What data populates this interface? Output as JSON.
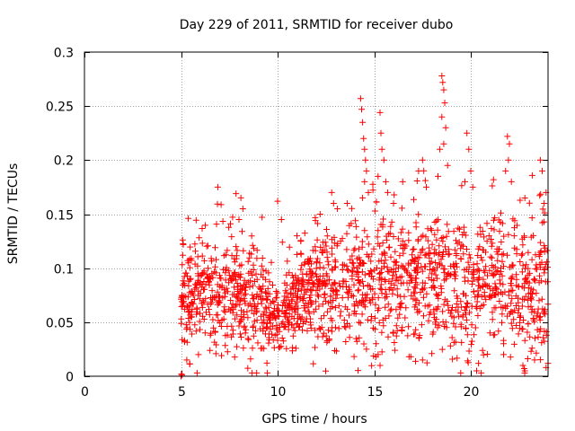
{
  "chart_data": {
    "type": "scatter",
    "title": "Day 229 of 2011, SRMTID for receiver dubo",
    "xlabel": "GPS time / hours",
    "ylabel": "SRMTID / TECUs",
    "xlim": [
      0,
      24
    ],
    "ylim": [
      0,
      0.3
    ],
    "xticks": [
      0,
      5,
      10,
      15,
      20
    ],
    "xtick_labels": [
      "0",
      "5",
      "10",
      "15",
      "20"
    ],
    "yticks": [
      0,
      0.05,
      0.1,
      0.15,
      0.2,
      0.25,
      0.3
    ],
    "ytick_labels": [
      "0",
      "0.05",
      "0.1",
      "0.15",
      "0.2",
      "0.25",
      "0.3"
    ],
    "grid": true,
    "marker": "+",
    "color": "#ff0000",
    "series": [
      {
        "name": "SRMTID",
        "profile": {
          "start_hour": 5.0,
          "end_hour": 24.0,
          "n_points": 1700,
          "envelope": [
            {
              "x": 5.0,
              "base": 0.07,
              "spread": 0.035
            },
            {
              "x": 6.0,
              "base": 0.075,
              "spread": 0.035
            },
            {
              "x": 7.0,
              "base": 0.07,
              "spread": 0.03
            },
            {
              "x": 8.0,
              "base": 0.08,
              "spread": 0.035
            },
            {
              "x": 9.0,
              "base": 0.065,
              "spread": 0.03
            },
            {
              "x": 10.0,
              "base": 0.05,
              "spread": 0.02
            },
            {
              "x": 11.0,
              "base": 0.065,
              "spread": 0.025
            },
            {
              "x": 12.0,
              "base": 0.085,
              "spread": 0.03
            },
            {
              "x": 13.0,
              "base": 0.075,
              "spread": 0.03
            },
            {
              "x": 14.0,
              "base": 0.085,
              "spread": 0.035
            },
            {
              "x": 15.0,
              "base": 0.085,
              "spread": 0.04
            },
            {
              "x": 16.0,
              "base": 0.09,
              "spread": 0.04
            },
            {
              "x": 17.0,
              "base": 0.09,
              "spread": 0.04
            },
            {
              "x": 18.0,
              "base": 0.085,
              "spread": 0.04
            },
            {
              "x": 19.0,
              "base": 0.085,
              "spread": 0.04
            },
            {
              "x": 20.0,
              "base": 0.075,
              "spread": 0.04
            },
            {
              "x": 21.0,
              "base": 0.085,
              "spread": 0.04
            },
            {
              "x": 22.0,
              "base": 0.085,
              "spread": 0.04
            },
            {
              "x": 23.0,
              "base": 0.08,
              "spread": 0.04
            },
            {
              "x": 24.0,
              "base": 0.08,
              "spread": 0.04
            }
          ]
        },
        "points": [
          [
            5.0,
            0.0
          ],
          [
            5.02,
            0.002
          ],
          [
            5.05,
            0.001
          ],
          [
            14.3,
            0.257
          ],
          [
            14.35,
            0.247
          ],
          [
            14.4,
            0.235
          ],
          [
            14.45,
            0.22
          ],
          [
            14.5,
            0.21
          ],
          [
            14.55,
            0.2
          ],
          [
            14.6,
            0.19
          ],
          [
            14.5,
            0.18
          ],
          [
            14.7,
            0.17
          ],
          [
            14.4,
            0.165
          ],
          [
            15.3,
            0.244
          ],
          [
            15.35,
            0.225
          ],
          [
            15.4,
            0.21
          ],
          [
            15.5,
            0.2
          ],
          [
            15.2,
            0.185
          ],
          [
            15.6,
            0.18
          ],
          [
            15.7,
            0.17
          ],
          [
            16.0,
            0.16
          ],
          [
            17.3,
            0.19
          ],
          [
            17.5,
            0.2
          ],
          [
            17.7,
            0.175
          ],
          [
            18.5,
            0.278
          ],
          [
            18.55,
            0.272
          ],
          [
            18.6,
            0.265
          ],
          [
            18.65,
            0.253
          ],
          [
            18.5,
            0.24
          ],
          [
            18.7,
            0.23
          ],
          [
            18.6,
            0.215
          ],
          [
            18.4,
            0.21
          ],
          [
            18.8,
            0.195
          ],
          [
            18.3,
            0.185
          ],
          [
            19.8,
            0.225
          ],
          [
            19.9,
            0.21
          ],
          [
            20.0,
            0.19
          ],
          [
            19.7,
            0.18
          ],
          [
            20.1,
            0.175
          ],
          [
            21.9,
            0.222
          ],
          [
            22.0,
            0.215
          ],
          [
            21.95,
            0.2
          ],
          [
            21.8,
            0.19
          ],
          [
            22.1,
            0.18
          ],
          [
            23.6,
            0.2
          ],
          [
            23.7,
            0.19
          ],
          [
            23.9,
            0.17
          ],
          [
            23.8,
            0.16
          ],
          [
            8.1,
            0.165
          ],
          [
            8.2,
            0.155
          ],
          [
            8.0,
            0.145
          ],
          [
            6.9,
            0.175
          ],
          [
            10.0,
            0.162
          ],
          [
            10.2,
            0.145
          ],
          [
            11.0,
            0.13
          ],
          [
            11.2,
            0.125
          ],
          [
            12.2,
            0.15
          ],
          [
            12.8,
            0.17
          ],
          [
            12.9,
            0.16
          ],
          [
            13.1,
            0.155
          ],
          [
            13.6,
            0.16
          ],
          [
            16.9,
            0.018
          ],
          [
            17.5,
            0.015
          ],
          [
            20.3,
            0.005
          ],
          [
            20.4,
            0.012
          ],
          [
            21.7,
            0.02
          ],
          [
            22.7,
            0.01
          ],
          [
            22.8,
            0.005
          ],
          [
            23.3,
            0.015
          ],
          [
            23.9,
            0.008
          ],
          [
            24.0,
            0.012
          ],
          [
            14.6,
            0.025
          ],
          [
            15.2,
            0.02
          ],
          [
            15.3,
            0.01
          ],
          [
            5.3,
            0.015
          ],
          [
            5.9,
            0.02
          ]
        ]
      }
    ]
  }
}
